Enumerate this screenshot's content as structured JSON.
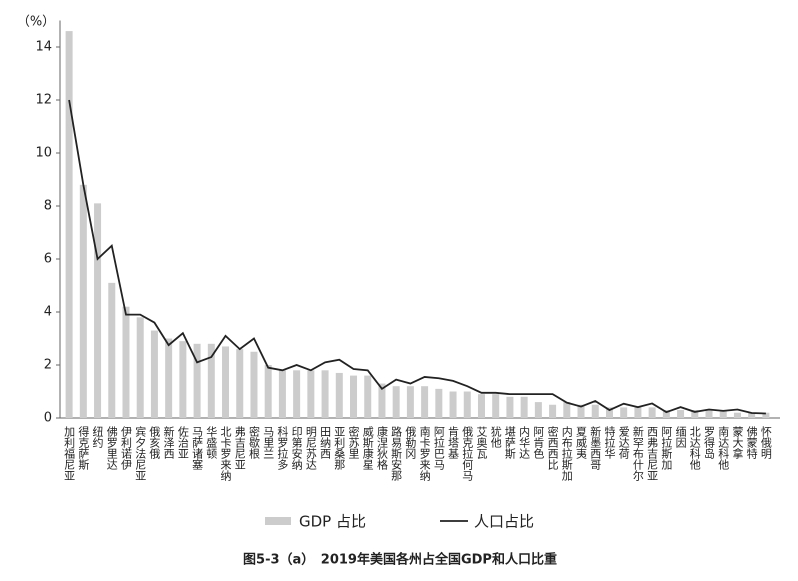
{
  "chart_data": {
    "type": "bar",
    "caption": "图5-3（a）　2019年美国各州占全国GDP和人口比重",
    "y_label": "（%）",
    "categories": [
      "加利福尼亚",
      "得克萨斯",
      "纽约",
      "佛罗里达",
      "伊利诺伊",
      "宾夕法尼亚",
      "俄亥俄",
      "新泽西",
      "佐治亚",
      "马萨诸塞",
      "华盛顿",
      "北卡罗来纳",
      "弗吉尼亚",
      "密歇根",
      "马里兰",
      "科罗拉多",
      "印第安纳",
      "明尼苏达",
      "田纳西",
      "亚利桑那",
      "密苏里",
      "威斯康星",
      "康涅狄格",
      "路易斯安那",
      "俄勒冈",
      "南卡罗来纳",
      "阿拉巴马",
      "肯塔基",
      "俄克拉何马",
      "艾奥瓦",
      "犹他",
      "堪萨斯",
      "内华达",
      "阿肯色",
      "密西西比",
      "内布拉斯加",
      "夏威夷",
      "新墨西哥",
      "特拉华",
      "爱达荷",
      "新罕布什尔",
      "西弗吉尼亚",
      "阿拉斯加",
      "缅因",
      "北达科他",
      "罗得岛",
      "南达科他",
      "蒙大拿",
      "佛蒙特",
      "怀俄明"
    ],
    "series": [
      {
        "name": "GDP 占比",
        "type": "bar",
        "color": "#cccccc",
        "values": [
          14.6,
          8.8,
          8.1,
          5.1,
          4.2,
          3.8,
          3.3,
          3.0,
          2.9,
          2.8,
          2.8,
          2.7,
          2.6,
          2.5,
          2.0,
          1.8,
          1.8,
          1.8,
          1.8,
          1.7,
          1.6,
          1.6,
          1.3,
          1.2,
          1.2,
          1.2,
          1.1,
          1.0,
          1.0,
          0.9,
          0.9,
          0.8,
          0.8,
          0.6,
          0.5,
          0.6,
          0.5,
          0.5,
          0.4,
          0.4,
          0.4,
          0.4,
          0.3,
          0.3,
          0.3,
          0.3,
          0.3,
          0.2,
          0.2,
          0.2
        ]
      },
      {
        "name": "人口占比",
        "type": "line",
        "color": "#222222",
        "values": [
          12.0,
          8.8,
          6.0,
          6.5,
          3.9,
          3.9,
          3.6,
          2.75,
          3.2,
          2.1,
          2.3,
          3.1,
          2.6,
          3.0,
          1.9,
          1.8,
          2.0,
          1.8,
          2.1,
          2.2,
          1.85,
          1.8,
          1.1,
          1.45,
          1.3,
          1.55,
          1.5,
          1.4,
          1.2,
          0.95,
          0.95,
          0.9,
          0.9,
          0.9,
          0.9,
          0.58,
          0.43,
          0.64,
          0.3,
          0.54,
          0.41,
          0.55,
          0.22,
          0.41,
          0.23,
          0.32,
          0.27,
          0.32,
          0.19,
          0.17
        ]
      }
    ],
    "ylim": [
      0,
      15
    ],
    "yticks": [
      0,
      2,
      4,
      6,
      8,
      10,
      12,
      14
    ]
  }
}
